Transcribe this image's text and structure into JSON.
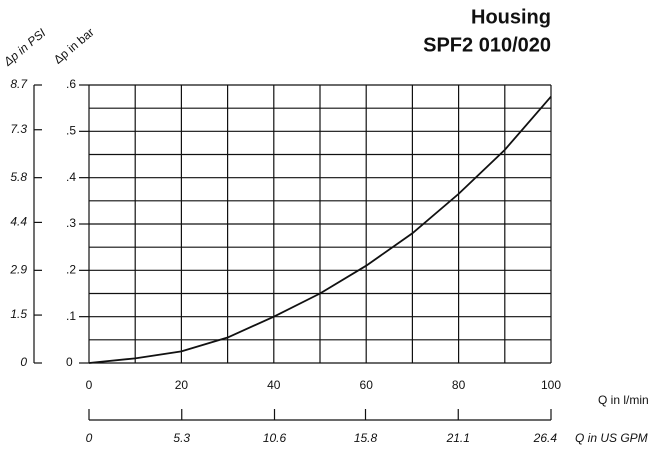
{
  "chart_data": {
    "type": "line",
    "title": "Housing",
    "subtitle": "SPF2 010/020",
    "x_label": "Q in l/min",
    "x2_label": "Q in US GPM",
    "y_label": "Δp in bar",
    "y2_label": "Δp in PSI",
    "x": [
      0,
      10,
      20,
      30,
      40,
      50,
      60,
      70,
      80,
      90,
      100
    ],
    "series": [
      {
        "color": "#111111",
        "values": [
          0,
          0.01,
          0.025,
          0.055,
          0.1,
          0.15,
          0.21,
          0.28,
          0.365,
          0.46,
          0.575
        ]
      }
    ],
    "xlim": [
      0,
      100
    ],
    "xticks": [
      0,
      20,
      40,
      60,
      80,
      100
    ],
    "x2lim": [
      0,
      26.4
    ],
    "x2ticks": [
      0,
      5.3,
      10.6,
      15.8,
      21.1,
      26.4
    ],
    "ylim": [
      0,
      0.6
    ],
    "yticks": [
      0,
      {
        "value": 0.1,
        "label": ".1"
      },
      {
        "value": 0.2,
        "label": ".2"
      },
      {
        "value": 0.3,
        "label": ".3"
      },
      {
        "value": 0.4,
        "label": ".4"
      },
      {
        "value": 0.5,
        "label": ".5"
      },
      {
        "value": 0.6,
        "label": ".6"
      }
    ],
    "y2lim": [
      0,
      8.7
    ],
    "y2ticks": [
      0,
      1.5,
      2.9,
      4.4,
      5.8,
      7.3,
      8.7
    ],
    "xgrid": [
      0,
      10,
      20,
      30,
      40,
      50,
      60,
      70,
      80,
      90,
      100
    ],
    "ygrid": [
      0,
      0.05,
      0.1,
      0.15,
      0.2,
      0.25,
      0.3,
      0.35,
      0.4,
      0.45,
      0.5,
      0.55,
      0.6
    ],
    "grid": true
  }
}
